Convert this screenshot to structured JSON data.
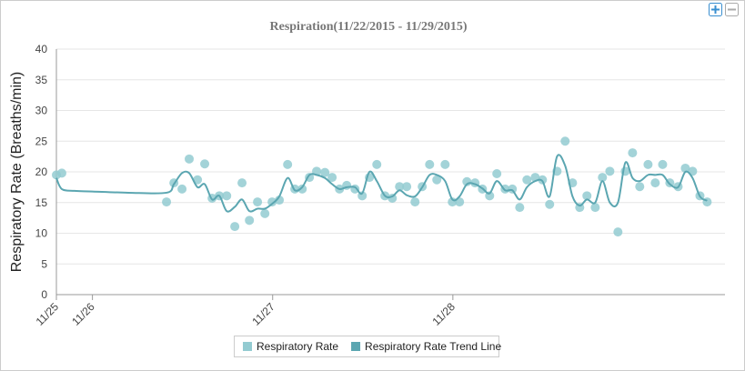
{
  "chart_data": {
    "type": "scatter",
    "title": "Respiration(11/22/2015 - 11/29/2015)",
    "y_label": "Respiratory Rate (Breaths/min)",
    "xlim": [
      0.8,
      4.51
    ],
    "xticks": [
      {
        "value": 0.8,
        "label": "11/25"
      },
      {
        "value": 1,
        "label": "11/26"
      },
      {
        "value": 2,
        "label": "11/27"
      },
      {
        "value": 3,
        "label": "11/28"
      }
    ],
    "ylim": [
      0,
      40
    ],
    "yticks": [
      0,
      5,
      10,
      15,
      20,
      25,
      30,
      35,
      40
    ],
    "grid": true,
    "legend": "bottom",
    "series": [
      {
        "name": "Respiratory Rate",
        "type": "scatter",
        "color": "#93cbd1",
        "x": [
          0.8,
          0.83,
          1.411,
          1.452,
          1.497,
          1.537,
          1.583,
          1.623,
          1.664,
          1.704,
          1.745,
          1.79,
          1.83,
          1.871,
          1.916,
          1.957,
          1.997,
          2.037,
          2.083,
          2.123,
          2.164,
          2.204,
          2.244,
          2.29,
          2.33,
          2.371,
          2.411,
          2.457,
          2.497,
          2.537,
          2.578,
          2.623,
          2.664,
          2.704,
          2.744,
          2.79,
          2.83,
          2.871,
          2.911,
          2.957,
          2.997,
          3.037,
          3.078,
          3.123,
          3.164,
          3.204,
          3.244,
          3.29,
          3.33,
          3.371,
          3.411,
          3.457,
          3.497,
          3.537,
          3.578,
          3.623,
          3.664,
          3.704,
          3.744,
          3.79,
          3.83,
          3.871,
          3.916,
          3.957,
          3.997,
          4.037,
          4.083,
          4.123,
          4.164,
          4.204,
          4.25,
          4.29,
          4.33,
          4.371,
          4.411
        ],
        "values": [
          19.5,
          19.8,
          15.1,
          18.2,
          17.2,
          22.1,
          18.7,
          21.3,
          15.7,
          16.1,
          16.1,
          11.1,
          18.2,
          12.1,
          15.1,
          13.2,
          15.1,
          15.4,
          21.2,
          17.2,
          17.2,
          19.1,
          20.1,
          19.9,
          19.1,
          17.2,
          17.8,
          17.2,
          16.1,
          19.1,
          21.2,
          16.1,
          15.7,
          17.6,
          17.6,
          15.1,
          17.6,
          21.2,
          18.7,
          21.2,
          15.1,
          15.1,
          18.4,
          18.2,
          17.2,
          16.1,
          19.7,
          17.2,
          17.2,
          14.2,
          18.7,
          19.1,
          18.7,
          14.7,
          20.1,
          25.0,
          18.2,
          14.2,
          16.1,
          14.2,
          19.1,
          20.1,
          10.2,
          20.1,
          23.1,
          17.6,
          21.2,
          18.2,
          21.2,
          18.2,
          17.6,
          20.6,
          20.1,
          16.1,
          15.1
        ]
      },
      {
        "name": "Respiratory Rate Trend Line",
        "type": "line",
        "color": "#5ba6b1",
        "x": [
          0.8,
          0.83,
          0.9,
          1.0,
          1.2,
          1.411,
          1.452,
          1.497,
          1.537,
          1.583,
          1.623,
          1.664,
          1.704,
          1.745,
          1.79,
          1.83,
          1.871,
          1.916,
          1.957,
          1.997,
          2.037,
          2.083,
          2.123,
          2.164,
          2.204,
          2.244,
          2.29,
          2.33,
          2.371,
          2.411,
          2.457,
          2.497,
          2.537,
          2.578,
          2.623,
          2.664,
          2.704,
          2.744,
          2.79,
          2.83,
          2.871,
          2.911,
          2.957,
          2.997,
          3.037,
          3.078,
          3.123,
          3.164,
          3.204,
          3.244,
          3.29,
          3.33,
          3.371,
          3.411,
          3.457,
          3.497,
          3.537,
          3.578,
          3.623,
          3.664,
          3.704,
          3.744,
          3.79,
          3.83,
          3.871,
          3.916,
          3.957,
          3.997,
          4.037,
          4.083,
          4.123,
          4.164,
          4.204,
          4.25,
          4.29,
          4.33,
          4.371,
          4.411
        ],
        "values": [
          19,
          17.2,
          16.9,
          16.8,
          16.6,
          16.6,
          18,
          19.8,
          19.8,
          17.5,
          18,
          15.5,
          16.1,
          13.6,
          14.3,
          15.5,
          13.6,
          14,
          14,
          14.8,
          16,
          19,
          17,
          17.5,
          19.5,
          19.5,
          19,
          18,
          17.2,
          17.5,
          17.5,
          16.5,
          20,
          18.5,
          16.1,
          16,
          17,
          16.2,
          16,
          17.5,
          19.5,
          19.5,
          18.5,
          15.5,
          16,
          18,
          18,
          17.3,
          16.5,
          18.5,
          17,
          17,
          15.5,
          17.5,
          18.5,
          18.5,
          16,
          22.5,
          21,
          16,
          14.5,
          15.5,
          15,
          18.5,
          15,
          15,
          21.5,
          19,
          18.5,
          19.5,
          19.5,
          19.5,
          18,
          17.5,
          20,
          19,
          16,
          15.3
        ]
      }
    ]
  }
}
